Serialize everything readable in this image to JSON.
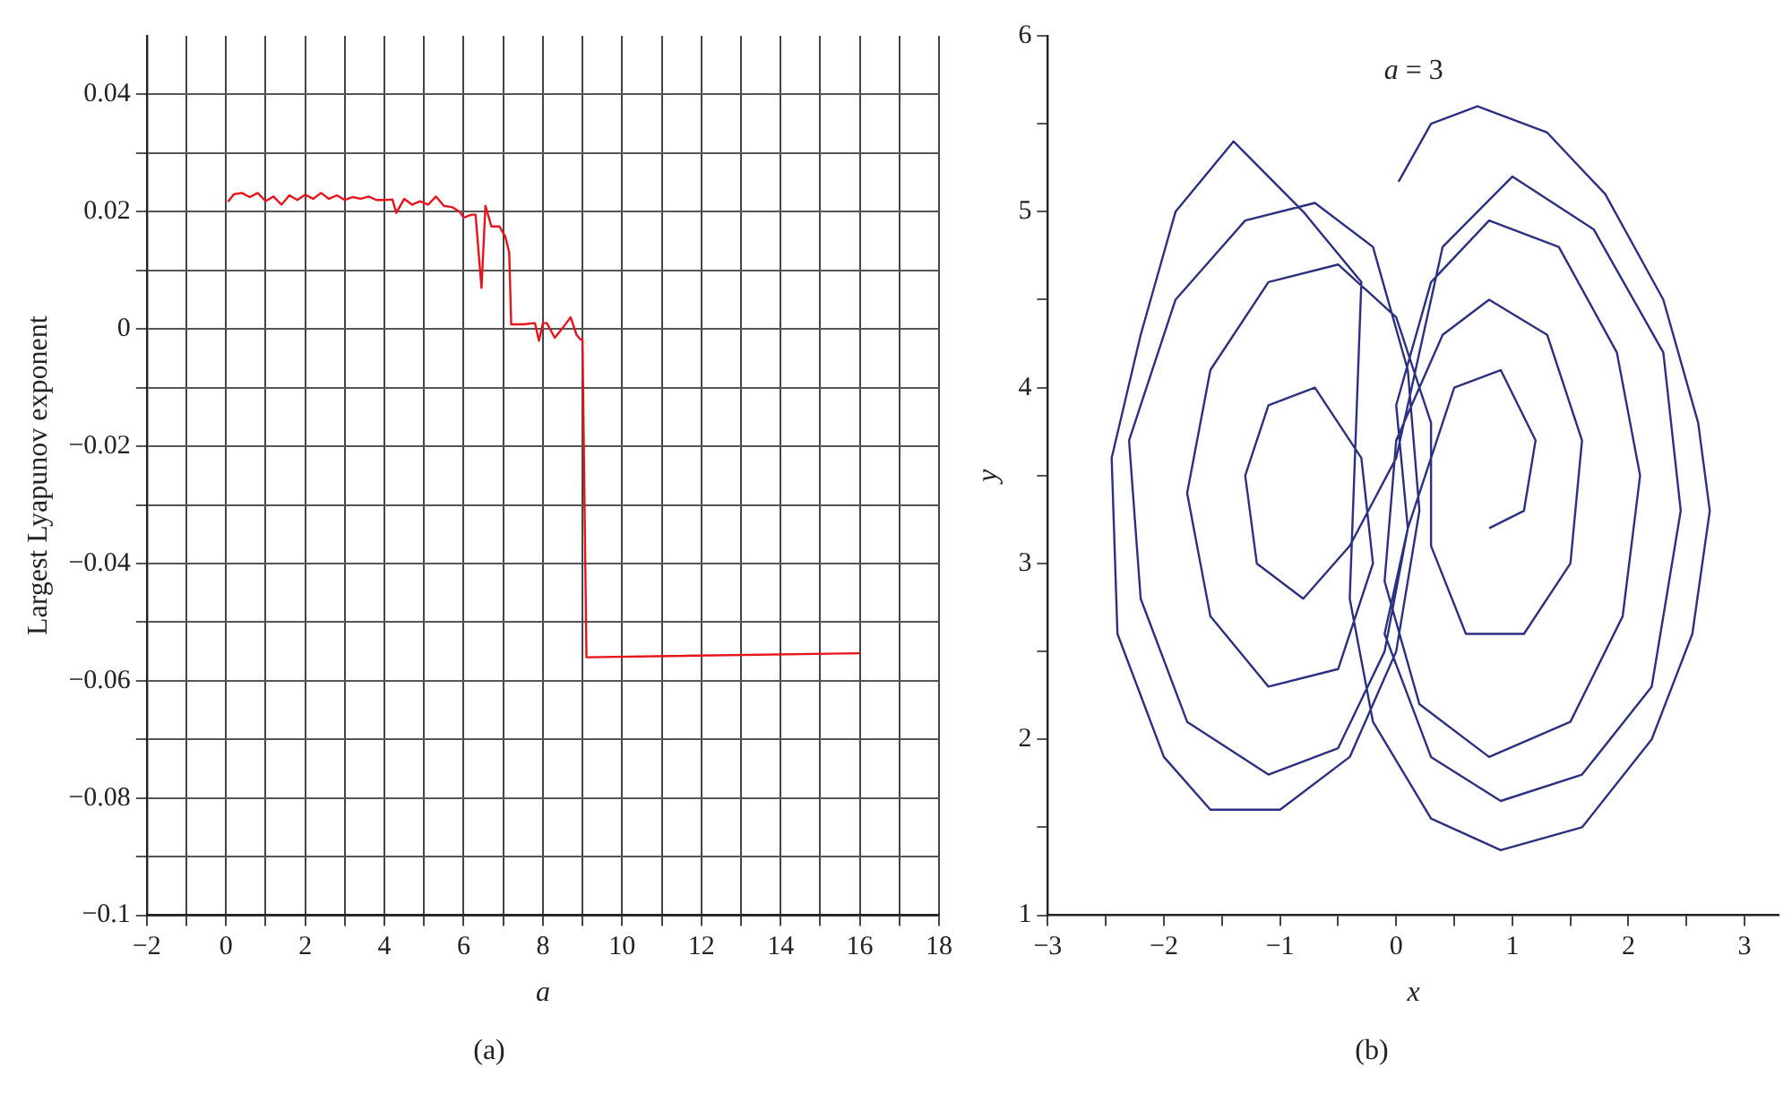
{
  "chart_data": [
    {
      "type": "line",
      "xlabel": "a",
      "ylabel": "Largest Lyapunov exponent",
      "annotations": [
        "(a)"
      ],
      "xlim": [
        -2,
        18
      ],
      "ylim": [
        -0.1,
        0.05
      ],
      "xticks": [
        {
          "value": -2,
          "label": "−2"
        },
        {
          "value": -1,
          "label": null
        },
        0,
        {
          "value": 1,
          "label": null
        },
        2,
        {
          "value": 3,
          "label": null
        },
        4,
        {
          "value": 5,
          "label": null
        },
        6,
        {
          "value": 7,
          "label": null
        },
        8,
        {
          "value": 9,
          "label": null
        },
        10,
        {
          "value": 11,
          "label": null
        },
        12,
        {
          "value": 13,
          "label": null
        },
        14,
        {
          "value": 15,
          "label": null
        },
        16,
        {
          "value": 17,
          "label": null
        },
        18
      ],
      "yticks": [
        {
          "value": -0.1,
          "label": "−0.1"
        },
        {
          "value": -0.09,
          "label": null
        },
        {
          "value": -0.08,
          "label": "−0.08"
        },
        {
          "value": -0.07,
          "label": null
        },
        {
          "value": -0.06,
          "label": "−0.06"
        },
        {
          "value": -0.05,
          "label": null
        },
        {
          "value": -0.04,
          "label": "−0.04"
        },
        {
          "value": -0.03,
          "label": null
        },
        {
          "value": -0.02,
          "label": "−0.02"
        },
        {
          "value": -0.01,
          "label": null
        },
        0,
        {
          "value": 0.01,
          "label": null
        },
        0.02,
        {
          "value": 0.03,
          "label": null
        },
        0.04
      ],
      "grid": true,
      "line_style": "solid",
      "marker": "none",
      "series": [
        {
          "color": "#e8141c",
          "x": [
            0.05,
            0.2,
            0.4,
            0.6,
            0.8,
            1.0,
            1.2,
            1.4,
            1.6,
            1.8,
            2.0,
            2.2,
            2.4,
            2.6,
            2.8,
            3.0,
            3.2,
            3.4,
            3.6,
            3.8,
            4.0,
            4.2,
            4.3,
            4.5,
            4.7,
            4.9,
            5.1,
            5.3,
            5.5,
            5.7,
            5.9,
            6.0,
            6.2,
            6.3,
            6.45,
            6.55,
            6.7,
            6.9,
            7.05,
            7.15,
            7.2,
            7.5,
            7.8,
            7.9,
            8.0,
            8.1,
            8.3,
            8.5,
            8.7,
            8.85,
            8.95,
            9.0,
            9.1,
            16
          ],
          "values": [
            0.0217,
            0.023,
            0.0232,
            0.0225,
            0.0232,
            0.0218,
            0.0226,
            0.0212,
            0.0228,
            0.022,
            0.0229,
            0.0222,
            0.0232,
            0.0222,
            0.0228,
            0.022,
            0.0225,
            0.0222,
            0.0226,
            0.022,
            0.022,
            0.0221,
            0.0198,
            0.0222,
            0.0212,
            0.0218,
            0.0212,
            0.0226,
            0.021,
            0.0208,
            0.02,
            0.019,
            0.0195,
            0.0195,
            0.007,
            0.021,
            0.0175,
            0.0175,
            0.0158,
            0.013,
            0.0008,
            0.0008,
            0.001,
            -0.002,
            0.001,
            0.001,
            -0.0015,
            0.0002,
            0.002,
            -0.001,
            -0.0018,
            -0.0018,
            -0.056,
            -0.0553
          ]
        }
      ]
    },
    {
      "type": "line",
      "title": "a = 3",
      "xlabel": "x",
      "ylabel": "y",
      "annotations": [
        "(b)"
      ],
      "xlim": [
        -3,
        3.3
      ],
      "ylim": [
        1,
        6
      ],
      "xticks": [
        {
          "value": -3,
          "label": "−3"
        },
        {
          "value": -2.5,
          "label": null
        },
        {
          "value": -2,
          "label": "−2"
        },
        {
          "value": -1.5,
          "label": null
        },
        {
          "value": -1,
          "label": "−1"
        },
        {
          "value": -0.5,
          "label": null
        },
        0,
        {
          "value": 0.5,
          "label": null
        },
        1,
        {
          "value": 1.5,
          "label": null
        },
        2,
        {
          "value": 2.5,
          "label": null
        },
        3
      ],
      "yticks": [
        1,
        {
          "value": 1.5,
          "label": null
        },
        2,
        {
          "value": 2.5,
          "label": null
        },
        3,
        {
          "value": 3.5,
          "label": null
        },
        4,
        {
          "value": 4.5,
          "label": null
        },
        5,
        {
          "value": 5.5,
          "label": null
        },
        6
      ],
      "grid": false,
      "line_style": "solid",
      "marker": "none",
      "series": [
        {
          "color": "#2b3080",
          "x": [
            0.02,
            0.3,
            0.7,
            1.3,
            1.8,
            2.3,
            2.6,
            2.7,
            2.55,
            2.2,
            1.6,
            0.9,
            0.3,
            -0.2,
            -0.4,
            -0.3,
            -0.8,
            -1.4,
            -1.9,
            -2.2,
            -2.45,
            -2.4,
            -2.0,
            -1.6,
            -1.0,
            -0.4,
            0.0,
            0.2,
            0.1,
            -0.2,
            -0.7,
            -1.3,
            -1.9,
            -2.3,
            -2.2,
            -1.8,
            -1.1,
            -0.5,
            -0.1,
            0.1,
            0.0,
            0.3,
            0.8,
            1.4,
            1.9,
            2.1,
            1.95,
            1.5,
            0.8,
            0.2,
            -0.1,
            0.0,
            0.4,
            0.8,
            1.3,
            1.6,
            1.5,
            1.1,
            0.6,
            0.3,
            0.3,
            0.0,
            -0.5,
            -1.1,
            -1.6,
            -1.8,
            -1.6,
            -1.1,
            -0.5,
            -0.2,
            -0.3,
            -0.7,
            -1.1,
            -1.3,
            -1.2,
            -0.8,
            -0.4,
            0.0,
            0.4,
            1.0,
            1.7,
            2.3,
            2.45,
            2.2,
            1.6,
            0.9,
            0.3,
            -0.1,
            0.1,
            0.5,
            0.9,
            1.2,
            1.1,
            0.8
          ],
          "values": [
            5.17,
            5.5,
            5.6,
            5.45,
            5.1,
            4.5,
            3.8,
            3.3,
            2.6,
            2.0,
            1.5,
            1.37,
            1.55,
            2.1,
            2.8,
            4.6,
            5.0,
            5.4,
            5.0,
            4.3,
            3.6,
            2.6,
            1.9,
            1.6,
            1.6,
            1.9,
            2.5,
            3.3,
            4.1,
            4.8,
            5.05,
            4.95,
            4.5,
            3.7,
            2.8,
            2.1,
            1.8,
            1.95,
            2.5,
            3.2,
            3.9,
            4.6,
            4.95,
            4.8,
            4.2,
            3.5,
            2.7,
            2.1,
            1.9,
            2.2,
            2.9,
            3.7,
            4.3,
            4.5,
            4.3,
            3.7,
            3.0,
            2.6,
            2.6,
            3.1,
            3.8,
            4.4,
            4.7,
            4.6,
            4.1,
            3.4,
            2.7,
            2.3,
            2.4,
            3.0,
            3.6,
            4.0,
            3.9,
            3.5,
            3.0,
            2.8,
            3.1,
            3.6,
            4.8,
            5.2,
            4.9,
            4.2,
            3.3,
            2.3,
            1.8,
            1.65,
            1.9,
            2.6,
            3.2,
            4.0,
            4.1,
            3.7,
            3.3,
            3.2
          ]
        }
      ]
    }
  ]
}
